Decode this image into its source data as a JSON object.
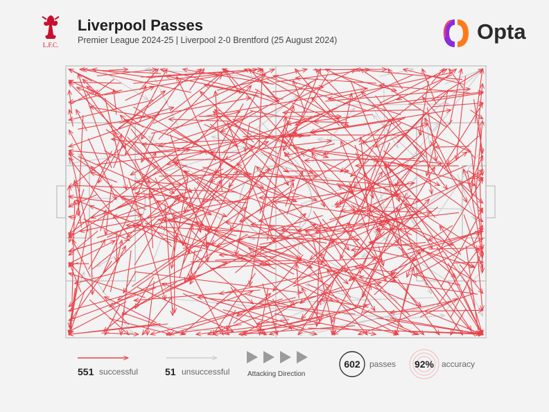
{
  "header": {
    "title": "Liverpool Passes",
    "subtitle": "Premier League 2024-25 | Liverpool 2-0 Brentford (25 August 2024)",
    "crest_text": "L.F.C.",
    "brand": "Opta"
  },
  "colors": {
    "successful": "#e8434b",
    "unsuccessful": "#c9cccf",
    "pitch_lines": "#c8c8c8",
    "accent_ring": "#f1b9bc"
  },
  "legend": {
    "successful_count": "551",
    "successful_label": "successful",
    "unsuccessful_count": "51",
    "unsuccessful_label": "unsuccessful",
    "direction_label": "Attacking Direction",
    "passes_count": "602",
    "passes_label": "passes",
    "accuracy_value": "92%",
    "accuracy_label": "accuracy"
  },
  "chart_data": {
    "type": "pass map",
    "total_passes": 602,
    "successful": 551,
    "unsuccessful": 51,
    "accuracy": 0.92,
    "attacking_direction": "left-to-right"
  }
}
